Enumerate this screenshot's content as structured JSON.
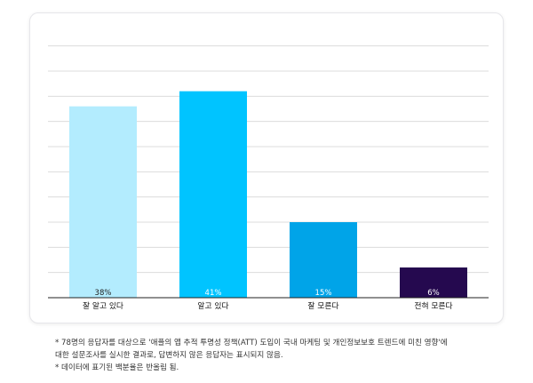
{
  "colors": {
    "card_border": "#e6e6ea",
    "grid": "#dcdcdc",
    "axis": "#222222",
    "tick_text": "#111111"
  },
  "chart_data": {
    "type": "bar",
    "categories": [
      "잘 알고 있다",
      "알고 있다",
      "잘 모른다",
      "전혀 모른다"
    ],
    "values": [
      38,
      41,
      15,
      6
    ],
    "data_labels": [
      "38%",
      "41%",
      "15%",
      "6%"
    ],
    "bar_colors": [
      "#b3ecfe",
      "#00c4ff",
      "#00a4e8",
      "#25094f"
    ],
    "label_colors": [
      "#222222",
      "#ffffff",
      "#ffffff",
      "#ffffff"
    ],
    "ylim": [
      0,
      51
    ],
    "gridline_step": 5,
    "grid": true,
    "title": "",
    "xlabel": "",
    "ylabel": ""
  },
  "notes": [
    "* 78명의 응답자를 대상으로 '애플의 앱 추적 투명성 정책(ATT) 도입이 국내 마케팅 및 개인정보보호 트렌드에 미친 영향'에",
    "대한 설문조사를 실시한 결과로, 답변하지 않은 응답자는 표시되지 않음.",
    "* 데이터에 표기된 백분율은 반올림 됨."
  ]
}
